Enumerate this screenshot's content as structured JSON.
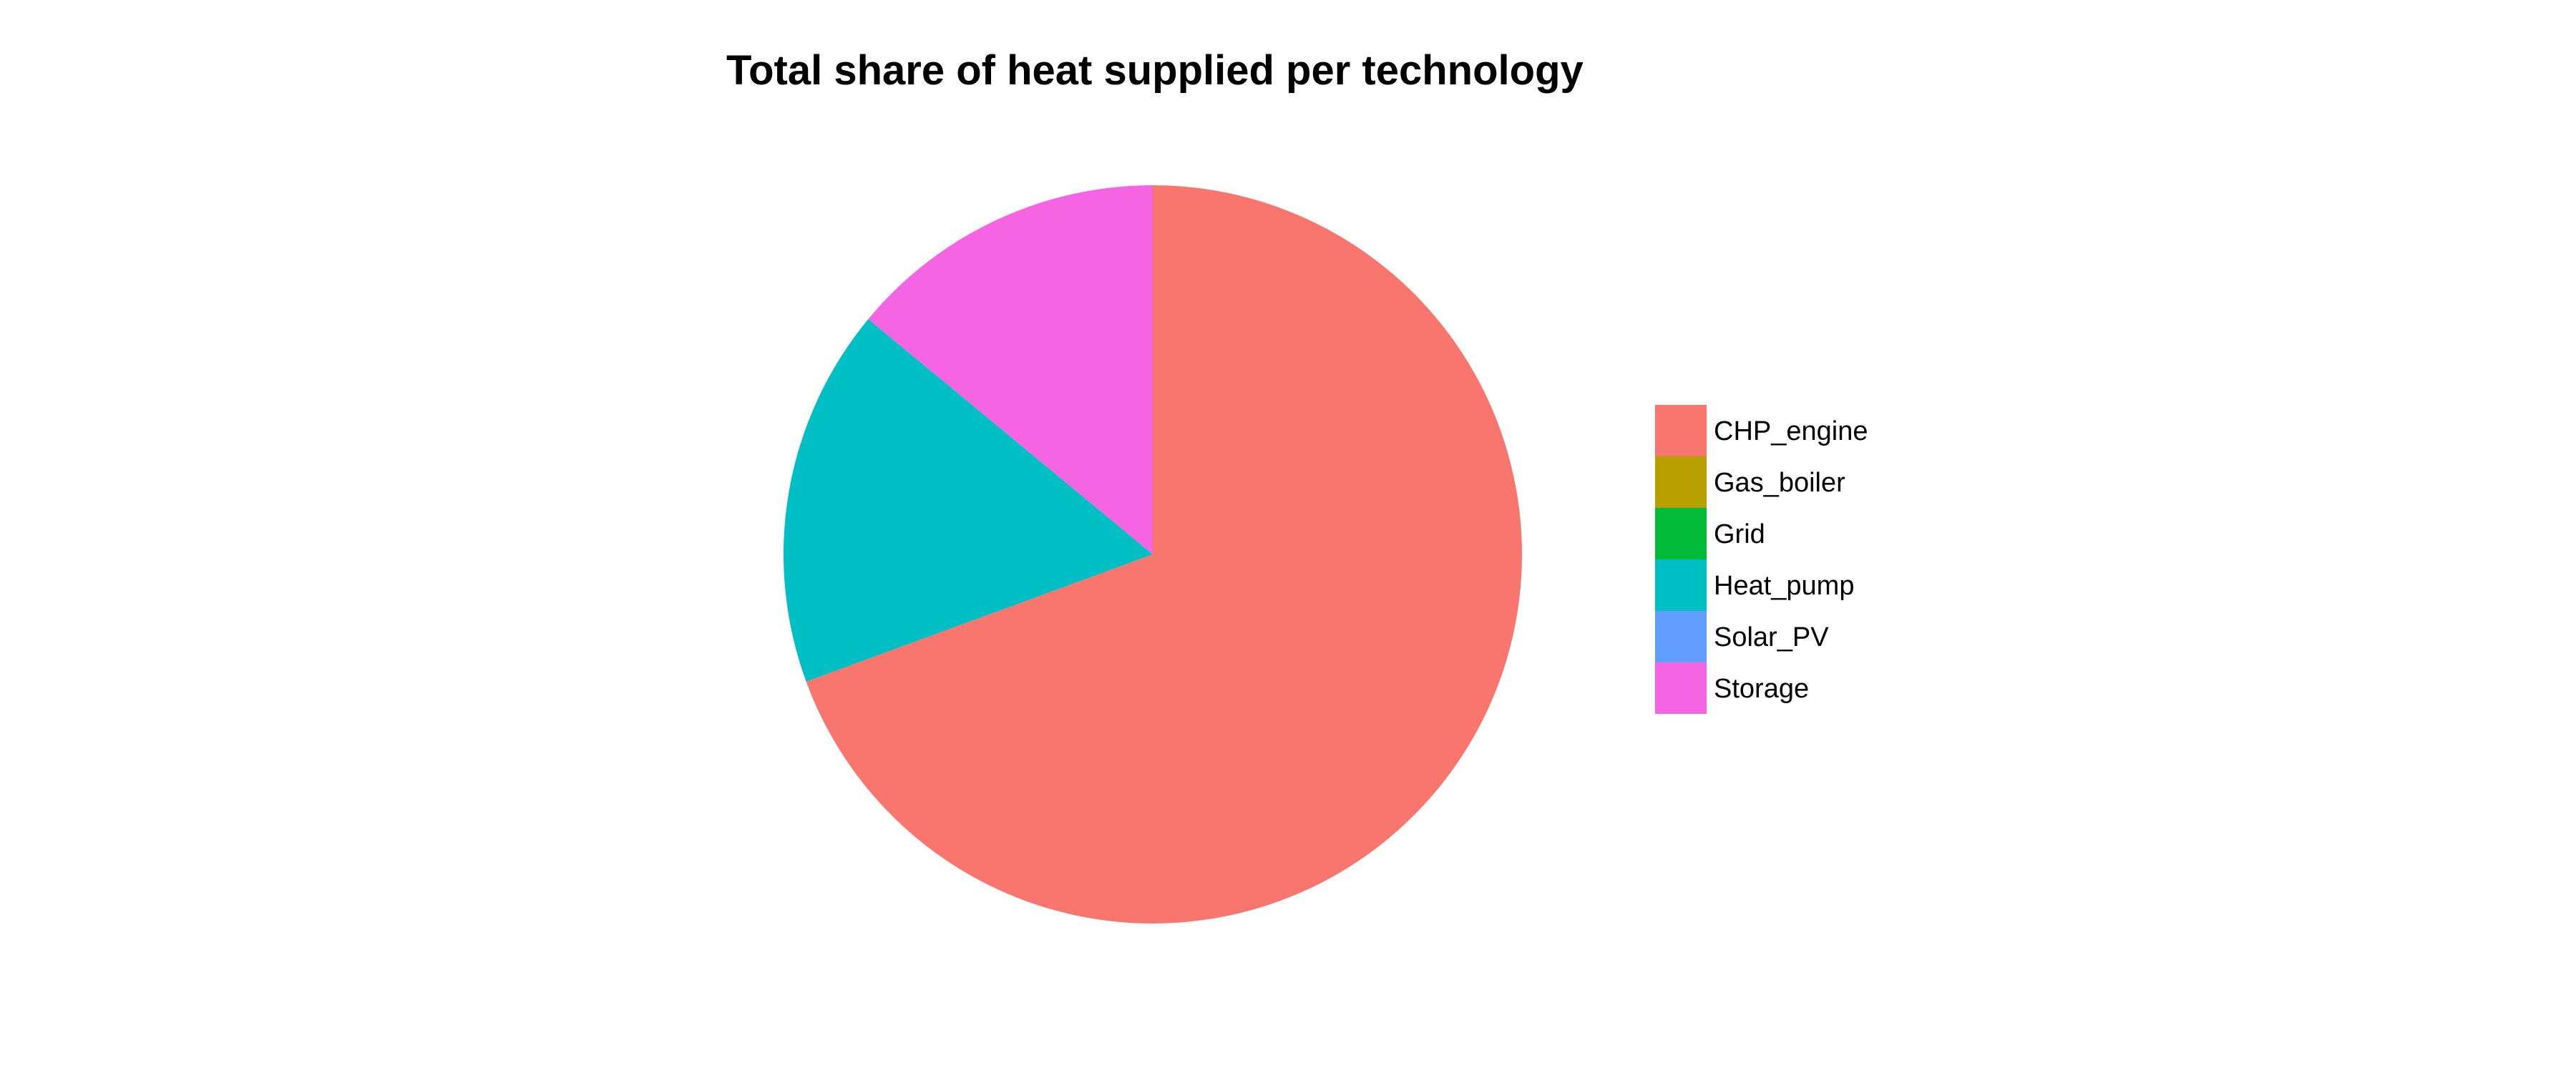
{
  "chart_data": {
    "type": "pie",
    "title": "Total share of heat supplied per technology",
    "start": "top",
    "direction": "clockwise",
    "legend_position": "right",
    "slices": [
      {
        "label": "CHP_engine",
        "value": 69.4,
        "color": "#F8766D"
      },
      {
        "label": "Gas_boiler",
        "value": 0,
        "color": "#B79F00"
      },
      {
        "label": "Grid",
        "value": 0,
        "color": "#00BA38"
      },
      {
        "label": "Heat_pump",
        "value": 16.6,
        "color": "#00BFC4"
      },
      {
        "label": "Solar_PV",
        "value": 0,
        "color": "#619CFF"
      },
      {
        "label": "Storage",
        "value": 14.0,
        "color": "#F564E3"
      }
    ]
  }
}
